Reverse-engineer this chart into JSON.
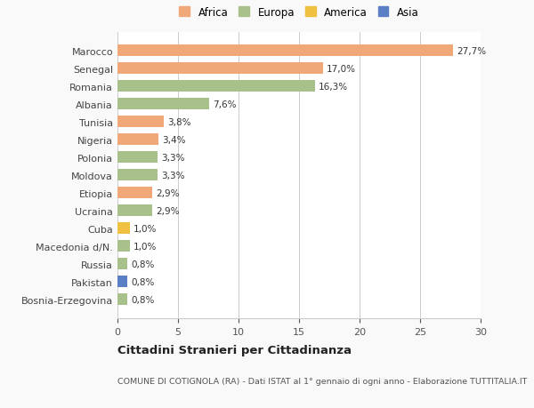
{
  "categories": [
    "Bosnia-Erzegovina",
    "Pakistan",
    "Russia",
    "Macedonia d/N.",
    "Cuba",
    "Ucraina",
    "Etiopia",
    "Moldova",
    "Polonia",
    "Nigeria",
    "Tunisia",
    "Albania",
    "Romania",
    "Senegal",
    "Marocco"
  ],
  "values": [
    0.8,
    0.8,
    0.8,
    1.0,
    1.0,
    2.9,
    2.9,
    3.3,
    3.3,
    3.4,
    3.8,
    7.6,
    16.3,
    17.0,
    27.7
  ],
  "labels": [
    "0,8%",
    "0,8%",
    "0,8%",
    "1,0%",
    "1,0%",
    "2,9%",
    "2,9%",
    "3,3%",
    "3,3%",
    "3,4%",
    "3,8%",
    "7,6%",
    "16,3%",
    "17,0%",
    "27,7%"
  ],
  "colors": [
    "#a8c08a",
    "#5b7fc4",
    "#a8c08a",
    "#a8c08a",
    "#f0c040",
    "#a8c08a",
    "#f0a878",
    "#a8c08a",
    "#a8c08a",
    "#f0a878",
    "#f0a878",
    "#a8c08a",
    "#a8c08a",
    "#f0a878",
    "#f0a878"
  ],
  "legend": [
    {
      "label": "Africa",
      "color": "#f0a878"
    },
    {
      "label": "Europa",
      "color": "#a8c08a"
    },
    {
      "label": "America",
      "color": "#f0c040"
    },
    {
      "label": "Asia",
      "color": "#5b7fc4"
    }
  ],
  "title": "Cittadini Stranieri per Cittadinanza",
  "subtitle": "COMUNE DI COTIGNOLA (RA) - Dati ISTAT al 1° gennaio di ogni anno - Elaborazione TUTTITALIA.IT",
  "xlim": [
    0,
    30
  ],
  "xticks": [
    0,
    5,
    10,
    15,
    20,
    25,
    30
  ],
  "background_color": "#f9f9f9",
  "bar_background": "#ffffff"
}
